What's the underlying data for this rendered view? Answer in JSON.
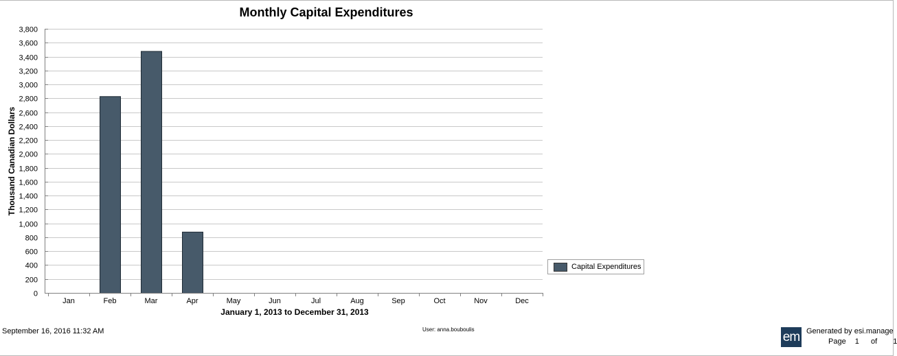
{
  "chart_data": {
    "type": "bar",
    "title": "Monthly Capital Expenditures",
    "xlabel": "January 1, 2013 to December 31, 2013",
    "ylabel": "Thousand Canadian Dollars",
    "categories": [
      "Jan",
      "Feb",
      "Mar",
      "Apr",
      "May",
      "Jun",
      "Jul",
      "Aug",
      "Sep",
      "Oct",
      "Nov",
      "Dec"
    ],
    "series": [
      {
        "name": "Capital Expenditures",
        "color": "#475a6a",
        "values": [
          0,
          2830,
          3480,
          880,
          0,
          0,
          0,
          0,
          0,
          0,
          0,
          0
        ]
      }
    ],
    "ylim": [
      0,
      3800
    ],
    "yticks": [
      0,
      200,
      400,
      600,
      800,
      1000,
      1200,
      1400,
      1600,
      1800,
      2000,
      2200,
      2400,
      2600,
      2800,
      3000,
      3200,
      3400,
      3600,
      3800
    ],
    "ytick_labels": [
      "0",
      "200",
      "400",
      "600",
      "800",
      "1,000",
      "1,200",
      "1,400",
      "1,600",
      "1,800",
      "2,000",
      "2,200",
      "2,400",
      "2,600",
      "2,800",
      "3,000",
      "3,200",
      "3,400",
      "3,600",
      "3,800"
    ],
    "grid": true,
    "legend_position": "right"
  },
  "footer": {
    "date": "September 16, 2016 11:32 AM",
    "user": "User: anna.bouboulis",
    "logo_text": "em",
    "generated": "Generated by esi.manage",
    "page_label": "Page",
    "page_number": "1",
    "page_of": "of",
    "page_total": "1"
  }
}
